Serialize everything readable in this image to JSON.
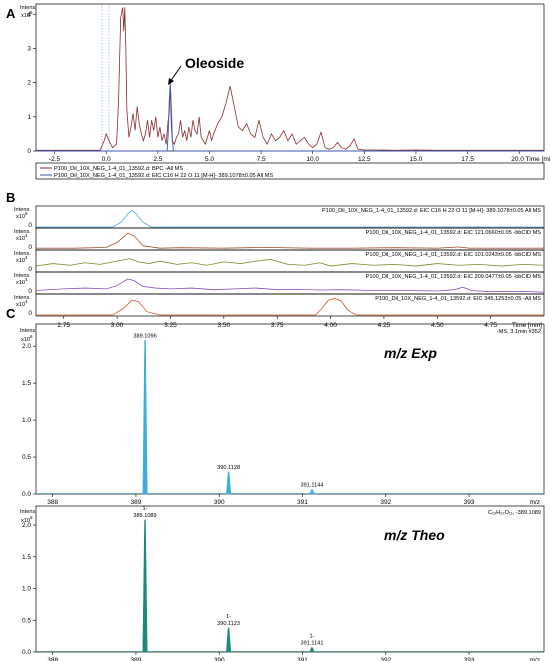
{
  "colors": {
    "bpc": "#8b2d2d",
    "eic": "#3a55b5",
    "b1": "#4aa8d8",
    "b2": "#a0522d",
    "b3": "#7a8a2a",
    "b4": "#8a4fbf",
    "b5": "#d9542e",
    "exp": "#3ab0d8",
    "theo": "#1a8a7a"
  },
  "panels": {
    "A": "A",
    "B": "B",
    "C": "C"
  },
  "chart_data": [
    {
      "id": "A",
      "type": "line",
      "intens_label": "Intens.",
      "ymult": "x10",
      "ymult_exp": "6",
      "y_ticks": [
        "0",
        "1",
        "2",
        "3",
        "4"
      ],
      "ylim": [
        0,
        4.3
      ],
      "xlim": [
        -3.4,
        21.2
      ],
      "x_ticks": [
        -2.5,
        0.0,
        2.5,
        5.0,
        7.5,
        10.0,
        12.5,
        15.0,
        17.5
      ],
      "x_tick_labels": [
        "-2.5",
        "0.0",
        "2.5",
        "5.0",
        "7.5",
        "10.0",
        "12.5",
        "15.0",
        "17.5"
      ],
      "x_last_label": "20.0 Time [min]",
      "annotation": "Oleoside",
      "annotation_x": 3.1,
      "annotation_y": 2.2,
      "legend": [
        "P100_Dil_10X_NEG_1-4_01_13592.d: BPC -All MS",
        "P100_Dil_10X_NEG_1-4_01_13592.d: EIC C16 H 22 O 11 [M-H]- 389.1078±0.05 All MS"
      ],
      "series": [
        {
          "name": "BPC",
          "color": "#8b2d2d",
          "x": [
            -3.4,
            -0.3,
            -0.1,
            0.0,
            0.1,
            0.3,
            0.5,
            0.6,
            0.7,
            0.8,
            0.85,
            0.9,
            0.95,
            1.0,
            1.1,
            1.2,
            1.3,
            1.4,
            1.5,
            1.6,
            1.7,
            1.8,
            1.9,
            2.0,
            2.1,
            2.2,
            2.3,
            2.4,
            2.5,
            2.6,
            2.7,
            2.8,
            2.9,
            3.0,
            3.05,
            3.1,
            3.15,
            3.2,
            3.3,
            3.4,
            3.5,
            3.6,
            3.7,
            3.8,
            3.9,
            4.0,
            4.1,
            4.2,
            4.3,
            4.4,
            4.5,
            4.6,
            4.7,
            4.8,
            4.9,
            5.0,
            5.1,
            5.2,
            5.4,
            5.6,
            5.8,
            6.0,
            6.2,
            6.4,
            6.6,
            6.8,
            7.0,
            7.2,
            7.4,
            7.6,
            7.8,
            8.0,
            8.2,
            8.4,
            8.6,
            8.8,
            9.0,
            9.2,
            9.4,
            9.6,
            9.8,
            10.0,
            10.2,
            10.4,
            10.6,
            10.8,
            11.0,
            11.2,
            11.4,
            11.6,
            11.8,
            12.0,
            12.2,
            12.5,
            13.0,
            14.0,
            15.0,
            16.0,
            17.0,
            18.0,
            19.0,
            20.0,
            21.2
          ],
          "y": [
            0.02,
            0.02,
            0.3,
            0.5,
            0.35,
            0.1,
            0.2,
            1.5,
            3.9,
            4.2,
            3.5,
            4.2,
            3.0,
            1.2,
            0.4,
            0.7,
            1.1,
            0.6,
            1.3,
            0.8,
            0.5,
            0.3,
            0.5,
            0.9,
            0.4,
            0.9,
            0.6,
            1.0,
            0.4,
            0.7,
            0.3,
            0.5,
            0.2,
            0.9,
            1.1,
            1.9,
            0.8,
            0.3,
            0.2,
            0.4,
            0.5,
            0.9,
            0.4,
            0.6,
            0.3,
            0.7,
            0.4,
            0.9,
            0.6,
            0.5,
            1.0,
            0.4,
            0.3,
            0.2,
            0.4,
            0.6,
            0.3,
            0.5,
            0.8,
            1.0,
            1.4,
            1.9,
            1.3,
            0.7,
            0.6,
            0.8,
            0.5,
            0.4,
            0.9,
            0.4,
            0.2,
            0.5,
            0.3,
            0.4,
            0.6,
            0.3,
            0.5,
            0.2,
            0.3,
            0.4,
            0.2,
            0.1,
            0.2,
            0.55,
            0.1,
            0.05,
            0.1,
            0.25,
            0.1,
            0.05,
            0.15,
            0.35,
            0.05,
            0.03,
            0.03,
            0.02,
            0.03,
            0.02,
            0.02,
            0.02,
            0.02,
            0.02,
            0.02
          ]
        },
        {
          "name": "EIC",
          "color": "#3a55b5",
          "x": [
            -3.4,
            2.95,
            3.0,
            3.05,
            3.1,
            3.15,
            3.2,
            3.25,
            21.2
          ],
          "y": [
            0.0,
            0.0,
            0.5,
            1.4,
            2.0,
            1.3,
            0.4,
            0.0,
            0.0
          ]
        }
      ]
    },
    {
      "id": "B",
      "type": "line",
      "xlim": [
        2.62,
        5.0
      ],
      "x_ticks": [
        2.75,
        3.0,
        3.25,
        3.5,
        3.75,
        4.0,
        4.25,
        4.5,
        4.75
      ],
      "x_tick_labels": [
        "2.75",
        "3.00",
        "3.25",
        "3.50",
        "3.75",
        "4.00",
        "4.25",
        "4.50",
        "4.75"
      ],
      "x_last_label": "Time [min]",
      "traces": [
        {
          "intens_label": "Intens.",
          "mult": "x10",
          "mult_exp": "6",
          "ticks": [
            "0"
          ],
          "color": "#4aa8d8",
          "label": "P100_Dil_10X_NEG_1-4_01_13592.d: EIC C16 H 22 O 11 [M-H]- 389.1078±0.05 All MS",
          "x": [
            2.62,
            2.98,
            3.02,
            3.05,
            3.07,
            3.09,
            3.12,
            3.16,
            5.0
          ],
          "y": [
            0.0,
            0.0,
            0.3,
            0.8,
            1.0,
            0.8,
            0.3,
            0.0,
            0.0
          ]
        },
        {
          "intens_label": "Intens.",
          "mult": "x10",
          "mult_exp": "4",
          "ticks": [
            "0"
          ],
          "color": "#a0522d",
          "label": "P100_Dil_10X_NEG_1-4_01_13592.d: EIC 121.0660±0.05 -bbCID MS",
          "x": [
            2.62,
            2.8,
            2.95,
            3.0,
            3.05,
            3.08,
            3.12,
            3.2,
            3.3,
            3.5,
            3.7,
            3.9,
            4.1,
            4.3,
            4.5,
            4.6,
            4.65,
            4.75,
            4.9,
            5.0
          ],
          "y": [
            0.05,
            0.05,
            0.1,
            0.4,
            0.95,
            0.8,
            0.2,
            0.05,
            0.08,
            0.05,
            0.1,
            0.05,
            0.05,
            0.08,
            0.05,
            0.12,
            0.05,
            0.05,
            0.05,
            0.05
          ]
        },
        {
          "intens_label": "Intens.",
          "mult": "x10",
          "mult_exp": "4",
          "ticks": [
            "0"
          ],
          "color": "#7a8a2a",
          "label": "P100_Dil_10X_NEG_1-4_01_13592.d: EIC 101.0243±0.05 -bbCID MS",
          "x": [
            2.62,
            2.7,
            2.78,
            2.85,
            2.92,
            3.0,
            3.06,
            3.1,
            3.15,
            3.2,
            3.28,
            3.35,
            3.42,
            3.5,
            3.58,
            3.65,
            3.72,
            3.8,
            3.88,
            3.95,
            4.0,
            4.1,
            4.2,
            4.3,
            4.4,
            4.5,
            4.6,
            4.7,
            4.8,
            4.9,
            5.0
          ],
          "y": [
            0.3,
            0.45,
            0.35,
            0.5,
            0.4,
            0.6,
            0.75,
            0.55,
            0.45,
            0.6,
            0.4,
            0.5,
            0.35,
            0.55,
            0.45,
            0.6,
            0.7,
            0.4,
            0.35,
            0.5,
            0.3,
            0.45,
            0.35,
            0.4,
            0.3,
            0.45,
            0.35,
            0.4,
            0.3,
            0.4,
            0.35
          ]
        },
        {
          "intens_label": "Intens.",
          "mult": "x10",
          "mult_exp": "4",
          "ticks": [
            "0"
          ],
          "color": "#8a4fbf",
          "label": "P100_Dil_10X_NEG_1-4_01_13592.d: EIC 209.0477±0.05 -bbCID MS",
          "x": [
            2.62,
            2.75,
            2.85,
            2.95,
            3.0,
            3.05,
            3.08,
            3.12,
            3.18,
            3.25,
            3.35,
            3.45,
            3.55,
            3.65,
            3.75,
            3.85,
            3.95,
            4.05,
            4.2,
            4.35,
            4.5,
            4.58,
            4.62,
            4.66,
            4.75,
            4.9,
            5.0
          ],
          "y": [
            0.15,
            0.25,
            0.3,
            0.25,
            0.45,
            0.85,
            0.75,
            0.4,
            0.3,
            0.25,
            0.3,
            0.2,
            0.25,
            0.3,
            0.2,
            0.22,
            0.18,
            0.2,
            0.15,
            0.15,
            0.12,
            0.2,
            0.35,
            0.15,
            0.08,
            0.1,
            0.05
          ]
        },
        {
          "intens_label": "Intens.",
          "mult": "x10",
          "mult_exp": "4",
          "ticks": [
            "0"
          ],
          "color": "#d9542e",
          "label": "P100_Dil_10X_NEG_1-4_01_13592.d: EIC 345.1253±0.05 -All MS",
          "x": [
            2.62,
            2.98,
            3.03,
            3.07,
            3.1,
            3.14,
            3.2,
            3.5,
            3.93,
            3.96,
            3.99,
            4.02,
            4.05,
            4.08,
            4.12,
            5.0
          ],
          "y": [
            0.0,
            0.0,
            0.4,
            0.9,
            0.8,
            0.2,
            0.0,
            0.0,
            0.0,
            0.4,
            0.9,
            1.0,
            0.85,
            0.3,
            0.0,
            0.0
          ]
        }
      ]
    },
    {
      "id": "C1",
      "type": "bar",
      "intens_label": "Intens.",
      "ymult": "x10",
      "ymult_exp": "6",
      "y_ticks": [
        "0.0",
        "0.5",
        "1.0",
        "1.5",
        "2.0"
      ],
      "ylim": [
        0,
        2.3
      ],
      "xlim": [
        387.8,
        393.9
      ],
      "x_ticks": [
        388,
        389,
        390,
        391,
        392,
        393
      ],
      "x_last_label": "m/z",
      "corner_label": "-MS, 3.1min #352",
      "title": "m/z Exp",
      "peaks": [
        {
          "mz": 389.1096,
          "value": 2.08,
          "label": "389.1096"
        },
        {
          "mz": 390.1128,
          "value": 0.3,
          "label": "390.1128"
        },
        {
          "mz": 391.1144,
          "value": 0.06,
          "label": "391.1144"
        }
      ],
      "color": "#3ab0d8"
    },
    {
      "id": "C2",
      "type": "bar",
      "intens_label": "Intens.",
      "ymult": "x10",
      "ymult_exp": "6",
      "y_ticks": [
        "0.0",
        "0.5",
        "1.0",
        "1.5",
        "2.0"
      ],
      "ylim": [
        0,
        2.3
      ],
      "xlim": [
        387.8,
        393.9
      ],
      "x_ticks": [
        388,
        389,
        390,
        391,
        392,
        393
      ],
      "x_last_label": "m/z",
      "corner_label": "C₁₆H₂₂O₁₁, -389.1089",
      "title": "m/z Theo",
      "peaks": [
        {
          "mz": 389.1089,
          "value": 2.08,
          "label": "389.1089",
          "charge": "1-"
        },
        {
          "mz": 390.1123,
          "value": 0.38,
          "label": "390.1123",
          "charge": "1-"
        },
        {
          "mz": 391.1141,
          "value": 0.07,
          "label": "391.1141",
          "charge": "1-"
        }
      ],
      "color": "#1a8a7a"
    }
  ]
}
